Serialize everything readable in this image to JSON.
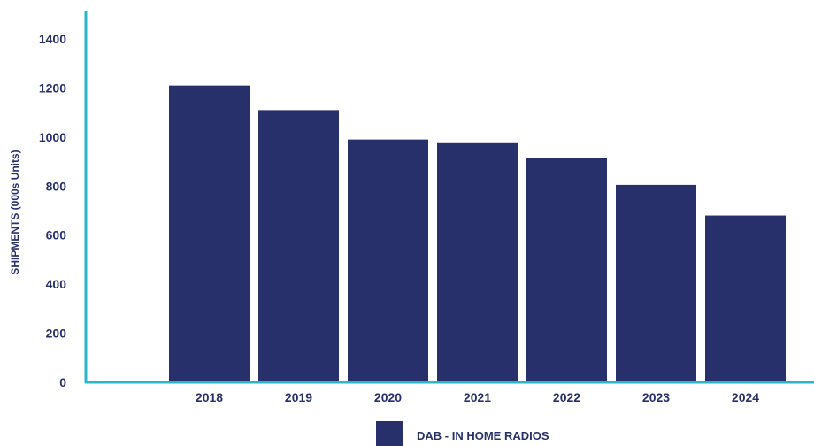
{
  "chart_data": {
    "type": "bar",
    "categories": [
      "2018",
      "2019",
      "2020",
      "2021",
      "2022",
      "2023",
      "2024"
    ],
    "series": [
      {
        "name": "DAB - IN HOME RADIOS",
        "values": [
          1210,
          1110,
          990,
          975,
          915,
          805,
          680
        ]
      }
    ],
    "ylabel": "SHIPMENTS (000s Units)",
    "xlabel": "",
    "ylim": [
      0,
      1400
    ],
    "yticks": [
      0,
      200,
      400,
      600,
      800,
      1000,
      1200,
      1400
    ],
    "grid": false,
    "legend": "bottom-center"
  },
  "colors": {
    "bar": "#27306b",
    "axis": "#29b6c9",
    "text": "#27306b"
  }
}
